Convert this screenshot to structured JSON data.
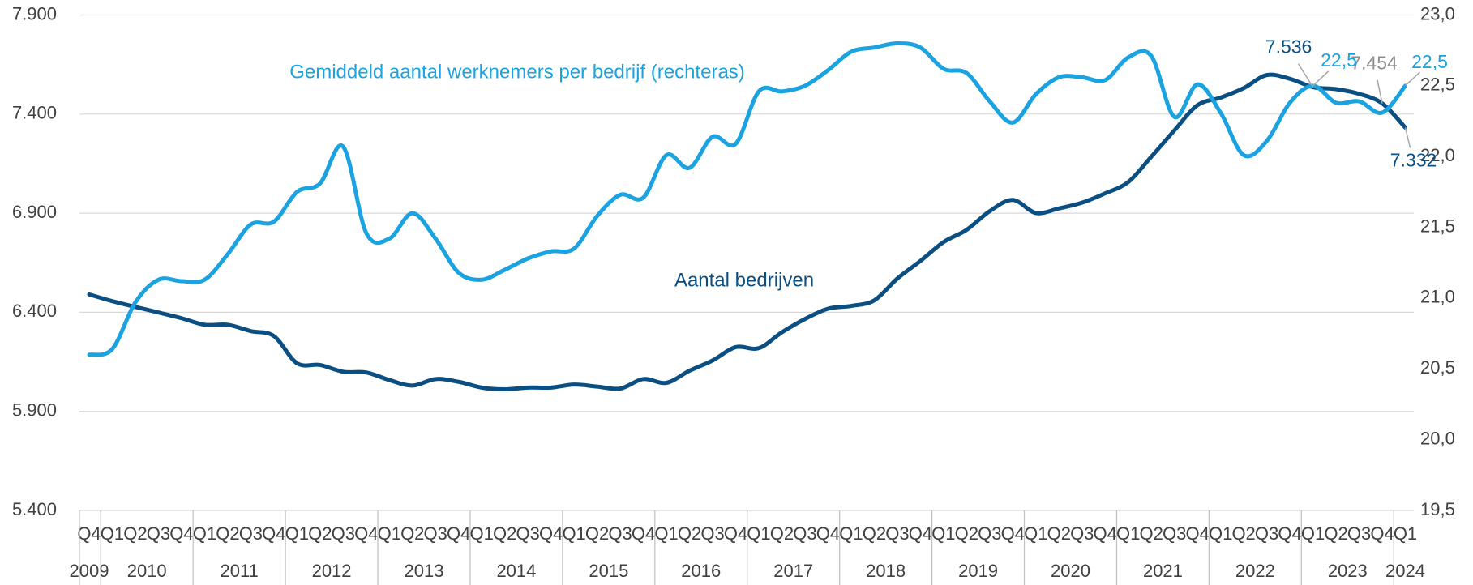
{
  "chart_data": {
    "type": "line",
    "categories": [
      "Q4",
      "Q1",
      "Q2",
      "Q3",
      "Q4",
      "Q1",
      "Q2",
      "Q3",
      "Q4",
      "Q1",
      "Q2",
      "Q3",
      "Q4",
      "Q1",
      "Q2",
      "Q3",
      "Q4",
      "Q1",
      "Q2",
      "Q3",
      "Q4",
      "Q1",
      "Q2",
      "Q3",
      "Q4",
      "Q1",
      "Q2",
      "Q3",
      "Q4",
      "Q1",
      "Q2",
      "Q3",
      "Q4",
      "Q1",
      "Q2",
      "Q3",
      "Q4",
      "Q1",
      "Q2",
      "Q3",
      "Q4",
      "Q1",
      "Q2",
      "Q3",
      "Q4",
      "Q1",
      "Q2",
      "Q3",
      "Q4",
      "Q1",
      "Q2",
      "Q3",
      "Q4",
      "Q1",
      "Q2",
      "Q3",
      "Q4",
      "Q1"
    ],
    "years": [
      "2009",
      "2010",
      "2011",
      "2012",
      "2013",
      "2014",
      "2015",
      "2016",
      "2017",
      "2018",
      "2019",
      "2020",
      "2021",
      "2022",
      "2023",
      "2024"
    ],
    "series": [
      {
        "name": "Aantal bedrijven",
        "color": "#0b4f82",
        "axis": "y",
        "values": [
          6490,
          6456,
          6427,
          6399,
          6370,
          6337,
          6337,
          6305,
          6280,
          6143,
          6134,
          6100,
          6096,
          6058,
          6030,
          6063,
          6049,
          6020,
          6011,
          6020,
          6020,
          6035,
          6025,
          6015,
          6063,
          6044,
          6105,
          6157,
          6224,
          6219,
          6299,
          6366,
          6418,
          6432,
          6460,
          6570,
          6659,
          6754,
          6816,
          6910,
          6967,
          6901,
          6924,
          6953,
          7000,
          7057,
          7185,
          7318,
          7445,
          7483,
          7531,
          7597,
          7578,
          7536,
          7526,
          7502,
          7454,
          7332
        ],
        "value_labels": [
          null,
          null,
          null,
          null,
          null,
          null,
          null,
          null,
          null,
          null,
          null,
          null,
          null,
          null,
          null,
          null,
          null,
          null,
          null,
          null,
          null,
          null,
          null,
          null,
          null,
          null,
          null,
          null,
          null,
          null,
          null,
          null,
          null,
          null,
          null,
          null,
          null,
          null,
          null,
          null,
          null,
          null,
          null,
          null,
          null,
          null,
          null,
          null,
          null,
          null,
          null,
          null,
          null,
          "7.536",
          null,
          null,
          "7.454",
          "7.332"
        ]
      },
      {
        "name": "Gemiddeld aantal werknemers per bedrijf (rechteras)",
        "color": "#1aa3e0",
        "axis": "y2",
        "values": [
          20.6,
          20.64,
          20.97,
          21.13,
          21.12,
          21.13,
          21.31,
          21.52,
          21.54,
          21.75,
          21.81,
          22.07,
          21.46,
          21.42,
          21.6,
          21.42,
          21.18,
          21.13,
          21.2,
          21.28,
          21.33,
          21.35,
          21.58,
          21.73,
          21.71,
          22.01,
          21.92,
          22.14,
          22.09,
          22.46,
          22.46,
          22.5,
          22.61,
          22.74,
          22.77,
          22.8,
          22.77,
          22.62,
          22.59,
          22.39,
          22.24,
          22.44,
          22.56,
          22.56,
          22.54,
          22.7,
          22.71,
          22.28,
          22.51,
          22.31,
          22.01,
          22.11,
          22.38,
          22.5,
          22.38,
          22.39,
          22.31,
          22.5
        ],
        "value_labels": [
          null,
          null,
          null,
          null,
          null,
          null,
          null,
          null,
          null,
          null,
          null,
          null,
          null,
          null,
          null,
          null,
          null,
          null,
          null,
          null,
          null,
          null,
          null,
          null,
          null,
          null,
          null,
          null,
          null,
          null,
          null,
          null,
          null,
          null,
          null,
          null,
          null,
          null,
          null,
          null,
          null,
          null,
          null,
          null,
          null,
          null,
          null,
          null,
          null,
          null,
          null,
          null,
          null,
          "22,5",
          null,
          null,
          null,
          "22,5"
        ]
      }
    ],
    "ylim": [
      5400,
      7900
    ],
    "yticks": [
      {
        "value": 5400,
        "label": "5.400"
      },
      {
        "value": 5900,
        "label": "5.900"
      },
      {
        "value": 6400,
        "label": "6.400"
      },
      {
        "value": 6900,
        "label": "6.900"
      },
      {
        "value": 7400,
        "label": "7.400"
      },
      {
        "value": 7900,
        "label": "7.900"
      }
    ],
    "y2lim": [
      19.5,
      23.0
    ],
    "y2ticks": [
      {
        "value": 19.5,
        "label": "19,5"
      },
      {
        "value": 20.0,
        "label": "20,0"
      },
      {
        "value": 20.5,
        "label": "20,5"
      },
      {
        "value": 21.0,
        "label": "21,0"
      },
      {
        "value": 21.5,
        "label": "21,5"
      },
      {
        "value": 22.0,
        "label": "22,0"
      },
      {
        "value": 22.5,
        "label": "22,5"
      },
      {
        "value": 23.0,
        "label": "23,0"
      }
    ],
    "grid": true
  }
}
